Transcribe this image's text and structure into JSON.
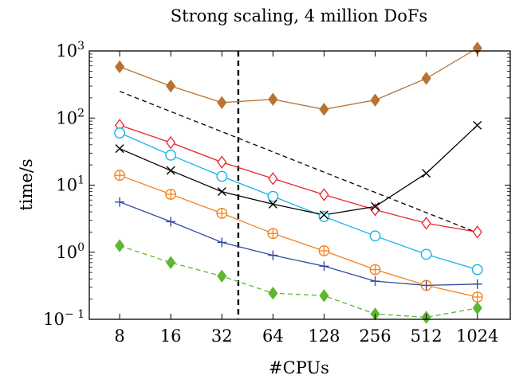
{
  "chart_data": {
    "type": "line",
    "title": "Strong scaling, 4 million DoFs",
    "xlabel": "#CPUs",
    "ylabel": "time/s",
    "x_scale": "log2",
    "y_scale": "log10",
    "x": [
      8,
      16,
      32,
      64,
      128,
      256,
      512,
      1024
    ],
    "x_tick_labels": [
      "8",
      "16",
      "32",
      "64",
      "128",
      "256",
      "512",
      "1024"
    ],
    "xlim": [
      5.3,
      1600
    ],
    "ylim": [
      0.1,
      1000
    ],
    "y_ticks": [
      {
        "value": 1000,
        "base": "10",
        "exp": "3"
      },
      {
        "value": 100,
        "base": "10",
        "exp": "2"
      },
      {
        "value": 10,
        "base": "10",
        "exp": "1"
      },
      {
        "value": 1,
        "base": "10",
        "exp": "0"
      },
      {
        "value": 0.1,
        "base": "10",
        "exp": "− 1"
      }
    ],
    "vertical_marker_x": 40,
    "series": [
      {
        "color": "#b87333",
        "marker": "filled-diamond",
        "dash": "solid",
        "values": [
          580,
          300,
          170,
          190,
          135,
          185,
          390,
          1100
        ]
      },
      {
        "color": "#000000",
        "marker": "none",
        "dash": "dashed",
        "values": [
          250,
          125,
          62.5,
          31.25,
          15.6,
          7.8,
          3.9,
          1.95
        ]
      },
      {
        "color": "#e8262b",
        "marker": "open-diamond",
        "dash": "solid",
        "values": [
          78,
          43,
          22,
          12.5,
          7.2,
          4.3,
          2.7,
          2.0
        ]
      },
      {
        "color": "#1ab2e8",
        "marker": "open-circle",
        "dash": "solid",
        "values": [
          60,
          28,
          13.5,
          6.8,
          3.4,
          1.75,
          0.93,
          0.55
        ]
      },
      {
        "color": "#000000",
        "marker": "cross",
        "dash": "solid",
        "values": [
          35,
          16.5,
          8.0,
          5.2,
          3.6,
          4.8,
          15,
          78
        ]
      },
      {
        "color": "#f2821f",
        "marker": "circle-plus",
        "dash": "solid",
        "values": [
          14,
          7.3,
          3.8,
          1.9,
          1.05,
          0.55,
          0.32,
          0.215
        ]
      },
      {
        "color": "#2e4a9e",
        "marker": "plus",
        "dash": "solid",
        "values": [
          5.6,
          2.85,
          1.4,
          0.9,
          0.62,
          0.37,
          0.32,
          0.335
        ]
      },
      {
        "color": "#5cb82e",
        "marker": "filled-diamond",
        "dash": "dashed",
        "values": [
          1.25,
          0.7,
          0.44,
          0.245,
          0.225,
          0.12,
          0.107,
          0.147
        ]
      }
    ]
  }
}
